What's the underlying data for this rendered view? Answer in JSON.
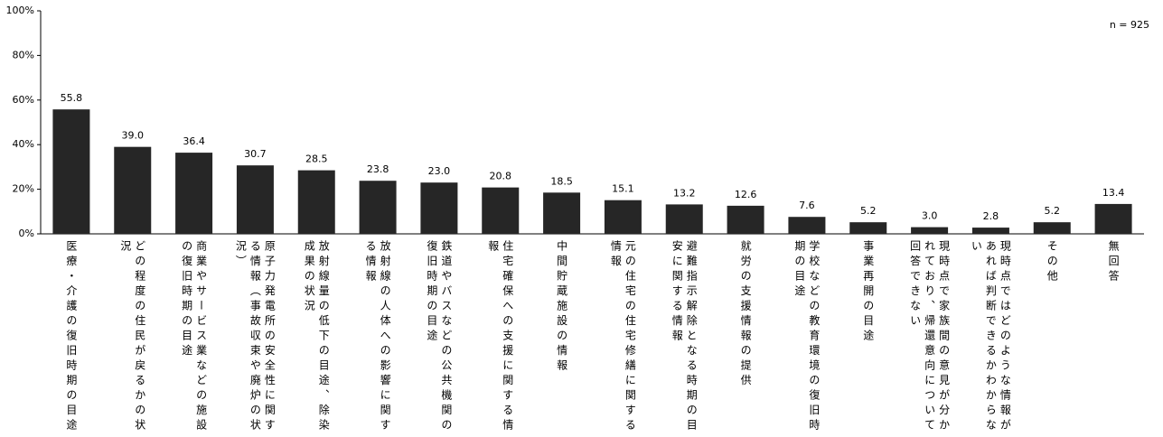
{
  "chart_data": {
    "type": "bar",
    "annotation": "n = 925",
    "categories": [
      "医療・介護の復旧時期の目途",
      "どの程度の住民が戻るかの状況",
      "商業やサービス業などの施設の復旧時期の目途",
      "原子力発電所の安全性に関する情報（事故収束や廃炉の状況）",
      "放射線量の低下の目途、除染成果の状況",
      "放射線の人体への影響に関する情報",
      "鉄道やバスなどの公共機関の復旧時期の目途",
      "住宅確保への支援に関する情報",
      "中間貯蔵施設の情報",
      "元の住宅の住宅修繕に関する情報",
      "避難指示解除となる時期の目安に関する情報",
      "就労の支援情報の提供",
      "学校などの教育環境の復旧時期の目途",
      "事業再開の目途",
      "現時点で家族間の意見が分かれており、帰還意向について回答できない",
      "現時点ではどのような情報があれば判断できるかわからない",
      "その他",
      "無回答"
    ],
    "values": [
      55.8,
      39.0,
      36.4,
      30.7,
      28.5,
      23.8,
      23.0,
      20.8,
      18.5,
      15.1,
      13.2,
      12.6,
      7.6,
      5.2,
      3.0,
      2.8,
      5.2,
      13.4
    ],
    "value_labels": [
      "55.8",
      "39.0",
      "36.4",
      "30.7",
      "28.5",
      "23.8",
      "23.0",
      "20.8",
      "18.5",
      "15.1",
      "13.2",
      "12.6",
      "7.6",
      "5.2",
      "3.0",
      "2.8",
      "5.2",
      "13.4"
    ],
    "color": "#262626",
    "ylim": [
      0,
      100
    ],
    "yticks": [
      {
        "value": 0,
        "label": "0%"
      },
      {
        "value": 20,
        "label": "20%"
      },
      {
        "value": 40,
        "label": "40%"
      },
      {
        "value": 60,
        "label": "60%"
      },
      {
        "value": 80,
        "label": "80%"
      },
      {
        "value": 100,
        "label": "100%"
      }
    ],
    "grid": false
  }
}
